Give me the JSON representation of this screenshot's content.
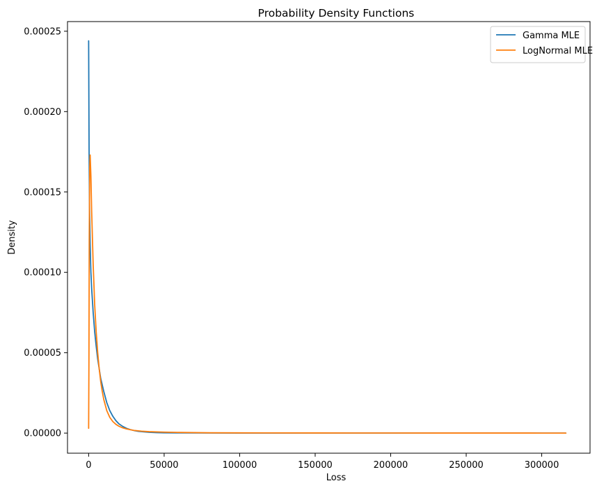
{
  "chart_data": {
    "type": "line",
    "title": "Probability Density Functions",
    "xlabel": "Loss",
    "ylabel": "Density",
    "xlim": [
      -14000,
      332000
    ],
    "ylim": [
      -1.25e-05,
      0.000256
    ],
    "xticks": [
      0,
      50000,
      100000,
      150000,
      200000,
      250000,
      300000
    ],
    "yticks": [
      0.0,
      5e-05,
      0.0001,
      0.00015,
      0.0002,
      0.00025
    ],
    "xtick_labels": [
      "0",
      "50000",
      "100000",
      "150000",
      "200000",
      "250000",
      "300000"
    ],
    "ytick_labels": [
      "0.00000",
      "0.00005",
      "0.00010",
      "0.00015",
      "0.00020",
      "0.00025"
    ],
    "legend_position": "top-right",
    "grid": false,
    "series": [
      {
        "name": "Gamma MLE",
        "color": "#1f77b4",
        "x": [
          0,
          300,
          600,
          1000,
          1500,
          2000,
          3000,
          4000,
          5000,
          6000,
          7000,
          8000,
          9000,
          10000,
          12000,
          14000,
          16000,
          18000,
          20000,
          22500,
          25000,
          27500,
          30000,
          33000,
          36000,
          40000,
          45000,
          50000,
          60000,
          80000,
          100000,
          150000,
          200000,
          250000,
          300000,
          316000
        ],
        "y": [
          0.000244,
          0.000175,
          0.00014,
          0.000117,
          0.0001,
          9e-05,
          7.5e-05,
          6.3e-05,
          5.4e-05,
          4.6e-05,
          4e-05,
          3.4e-05,
          3e-05,
          2.6e-05,
          1.9e-05,
          1.4e-05,
          1.05e-05,
          7.8e-06,
          5.8e-06,
          4.2e-06,
          3e-06,
          2.2e-06,
          1.6e-06,
          1.1e-06,
          8e-07,
          5e-07,
          3e-07,
          2e-07,
          1e-07,
          5e-08,
          2e-08,
          0.0,
          0.0,
          0.0,
          0.0,
          0.0
        ]
      },
      {
        "name": "LogNormal MLE",
        "color": "#ff7f0e",
        "x": [
          0,
          200,
          400,
          700,
          1000,
          1500,
          2000,
          3000,
          4000,
          5000,
          6000,
          7000,
          8000,
          9000,
          10000,
          12000,
          14000,
          16000,
          18000,
          20000,
          22500,
          25000,
          27500,
          30000,
          35000,
          40000,
          50000,
          60000,
          80000,
          100000,
          150000,
          200000,
          250000,
          300000,
          316000
        ],
        "y": [
          3e-06,
          4.5e-05,
          0.00012,
          0.000165,
          0.000173,
          0.00016,
          0.000138,
          0.000105,
          8e-05,
          6.3e-05,
          5e-05,
          4e-05,
          3.2e-05,
          2.6e-05,
          2.1e-05,
          1.4e-05,
          9.8e-06,
          7.2e-06,
          5.5e-06,
          4.3e-06,
          3.3e-06,
          2.6e-06,
          2.1e-06,
          1.7e-06,
          1.2e-06,
          9e-07,
          6e-07,
          4e-07,
          2e-07,
          1.5e-07,
          8e-08,
          5e-08,
          3e-08,
          2e-08,
          2e-08
        ]
      }
    ]
  }
}
